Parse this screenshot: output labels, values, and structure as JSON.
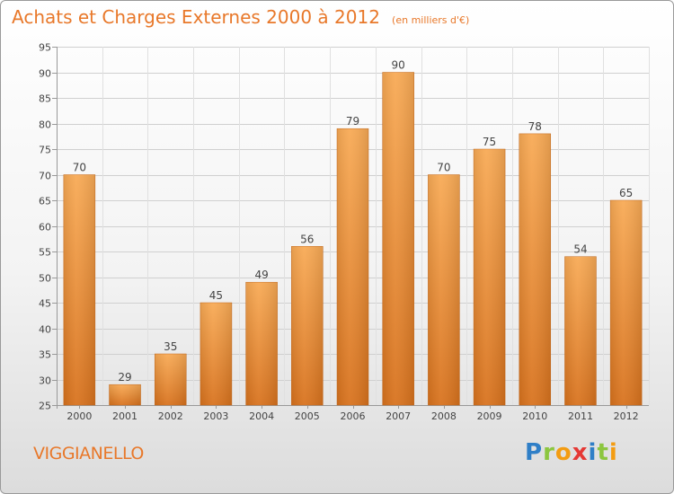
{
  "title": "Achats et Charges Externes 2000 à 2012",
  "subtitle": "(en milliers d'€)",
  "commune": "VIGGIANELLO",
  "logo": {
    "letters": [
      "P",
      "r",
      "o",
      "x",
      "i",
      "t",
      "i"
    ],
    "colors": [
      "#2f7fc7",
      "#8cc63f",
      "#f39c12",
      "#e53935",
      "#2f7fc7",
      "#8cc63f",
      "#f39c12"
    ]
  },
  "colors": {
    "bar_light": "#f8aa55",
    "bar_dark": "#d8721d",
    "accent": "#e8782a"
  },
  "chart_data": {
    "type": "bar",
    "title": "Achats et Charges Externes 2000 à 2012",
    "ylabel": "",
    "xlabel": "",
    "categories": [
      "2000",
      "2001",
      "2002",
      "2003",
      "2004",
      "2005",
      "2006",
      "2007",
      "2008",
      "2009",
      "2010",
      "2011",
      "2012"
    ],
    "values": [
      70,
      29,
      35,
      45,
      49,
      56,
      79,
      90,
      70,
      75,
      78,
      54,
      65
    ],
    "ylim": [
      25,
      95
    ],
    "yticks": [
      25,
      30,
      35,
      40,
      45,
      50,
      55,
      60,
      65,
      70,
      75,
      80,
      85,
      90,
      95
    ],
    "grid": true
  }
}
